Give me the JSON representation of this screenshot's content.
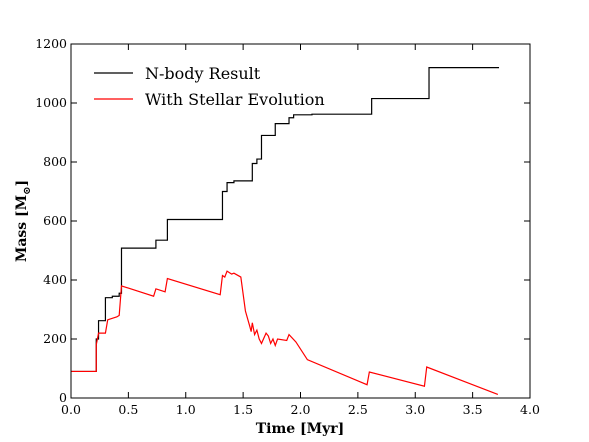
{
  "chart_data": {
    "type": "line",
    "xlabel": "Time [Myr]",
    "ylabel_main": "Mass [M",
    "ylabel_sub": "⊙",
    "ylabel_end": "]",
    "xlim": [
      0.0,
      4.0
    ],
    "ylim": [
      0,
      1200
    ],
    "xticks": [
      0.0,
      0.5,
      1.0,
      1.5,
      2.0,
      2.5,
      3.0,
      3.5,
      4.0
    ],
    "xtick_labels": [
      "0.0",
      "0.5",
      "1.0",
      "1.5",
      "2.0",
      "2.5",
      "3.0",
      "3.5",
      "4.0"
    ],
    "yticks": [
      0,
      200,
      400,
      600,
      800,
      1000,
      1200
    ],
    "ytick_labels": [
      "0",
      "200",
      "400",
      "600",
      "800",
      "1000",
      "1200"
    ],
    "grid": false,
    "legend_position": "top-left",
    "series": [
      {
        "name": "N-body Result",
        "color": "#000000",
        "step": true,
        "x": [
          0.0,
          0.22,
          0.24,
          0.3,
          0.36,
          0.42,
          0.44,
          0.72,
          0.74,
          0.82,
          0.84,
          1.3,
          1.32,
          1.36,
          1.42,
          1.56,
          1.58,
          1.62,
          1.66,
          1.7,
          1.78,
          1.8,
          1.9,
          1.94,
          2.06,
          2.1,
          2.6,
          2.62,
          3.1,
          3.12,
          3.73
        ],
        "y": [
          90,
          200,
          262,
          340,
          345,
          355,
          508,
          508,
          535,
          535,
          605,
          605,
          700,
          730,
          736,
          736,
          795,
          810,
          890,
          890,
          930,
          930,
          950,
          960,
          960,
          962,
          962,
          1015,
          1015,
          1120,
          1120
        ]
      },
      {
        "name": "With Stellar Evolution",
        "color": "#ff0000",
        "step": false,
        "x": [
          0.0,
          0.22,
          0.22,
          0.24,
          0.26,
          0.3,
          0.32,
          0.36,
          0.4,
          0.42,
          0.44,
          0.72,
          0.74,
          0.82,
          0.84,
          1.3,
          1.32,
          1.34,
          1.36,
          1.38,
          1.4,
          1.42,
          1.48,
          1.52,
          1.56,
          1.57,
          1.58,
          1.6,
          1.62,
          1.64,
          1.66,
          1.7,
          1.72,
          1.74,
          1.76,
          1.78,
          1.8,
          1.88,
          1.9,
          1.96,
          2.06,
          2.58,
          2.6,
          3.08,
          3.1,
          3.72
        ],
        "y": [
          90,
          90,
          180,
          220,
          220,
          220,
          265,
          270,
          275,
          280,
          380,
          345,
          370,
          360,
          405,
          350,
          415,
          410,
          430,
          425,
          420,
          423,
          410,
          295,
          240,
          225,
          255,
          215,
          230,
          200,
          185,
          220,
          210,
          185,
          200,
          178,
          200,
          195,
          215,
          190,
          130,
          45,
          88,
          40,
          105,
          12
        ]
      }
    ]
  }
}
